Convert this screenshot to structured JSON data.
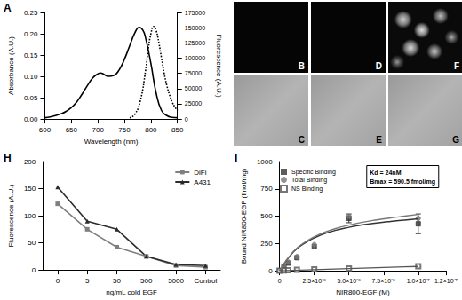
{
  "chart_data": [
    {
      "label": "A",
      "type": "line",
      "x_label": "Wavelength (nm)",
      "y_label": "Absorbance (A.U.)",
      "y2_label": "Fluorescence (A.U.)",
      "xlim": [
        600,
        850
      ],
      "xticks": [
        600,
        650,
        700,
        750,
        800,
        850
      ],
      "ylim": [
        0,
        0.25
      ],
      "yticks": [
        {
          "value": 0,
          "label": "0.00"
        },
        {
          "value": 0.05,
          "label": "0.05"
        },
        {
          "value": 0.1,
          "label": "0.10"
        },
        {
          "value": 0.15,
          "label": "0.15"
        },
        {
          "value": 0.2,
          "label": "0.20"
        },
        {
          "value": 0.25,
          "label": "0.25"
        }
      ],
      "y2lim": [
        0,
        175000
      ],
      "y2ticks": [
        0,
        25000,
        50000,
        75000,
        100000,
        125000,
        150000,
        175000
      ],
      "grid": false,
      "series": [
        {
          "color": "#000000",
          "line_style": "solid",
          "x": [
            600,
            610,
            620,
            630,
            640,
            650,
            660,
            670,
            680,
            690,
            700,
            705,
            710,
            720,
            730,
            740,
            750,
            760,
            770,
            778,
            785,
            790,
            800,
            810,
            820,
            830,
            840,
            850
          ],
          "values": [
            0.003,
            0.005,
            0.008,
            0.012,
            0.018,
            0.027,
            0.04,
            0.058,
            0.078,
            0.096,
            0.106,
            0.108,
            0.106,
            0.1,
            0.102,
            0.115,
            0.14,
            0.172,
            0.203,
            0.215,
            0.208,
            0.19,
            0.13,
            0.06,
            0.02,
            0.008,
            0.004,
            0.003
          ]
        },
        {
          "color": "#000000",
          "line_style": "dotted",
          "axis": "y2",
          "x": [
            760,
            770,
            780,
            790,
            795,
            800,
            805,
            810,
            815,
            820,
            825,
            830,
            835,
            840,
            845,
            850
          ],
          "values": [
            2000,
            8000,
            30000,
            80000,
            115000,
            140000,
            152000,
            145000,
            125000,
            100000,
            75000,
            55000,
            40000,
            28000,
            20000,
            14000
          ]
        }
      ]
    },
    {
      "label": "H",
      "type": "line",
      "x_label": "ng/mL cold EGF",
      "y_label": "Fluorescence (A.U.)",
      "categories": [
        "0",
        "5",
        "50",
        "500",
        "5000",
        "Control"
      ],
      "ylim": [
        0,
        200
      ],
      "yticks": [
        0,
        50,
        100,
        150,
        200
      ],
      "grid": false,
      "legend": "top-right",
      "series": [
        {
          "name": "DiFi",
          "color": "#7f7f7f",
          "marker": "square",
          "values": [
            122,
            75,
            42,
            25,
            8,
            5
          ]
        },
        {
          "name": "A431",
          "color": "#2b2b2b",
          "marker": "triangle",
          "values": [
            153,
            90,
            75,
            25,
            10,
            8
          ]
        }
      ]
    },
    {
      "label": "I",
      "type": "scatter",
      "x_label": "NIR800-EGF (M)",
      "y_label": "Bound NIR800-EGF (fmol/mg)",
      "xlim": [
        0,
        1.2e-07
      ],
      "xticks": [
        {
          "value": 0,
          "label": "0"
        },
        {
          "value": 2.5e-08,
          "label": "2.5×10⁻⁸"
        },
        {
          "value": 5e-08,
          "label": "5.0×10⁻⁸"
        },
        {
          "value": 7.5e-08,
          "label": "7.5×10⁻⁸"
        },
        {
          "value": 1e-07,
          "label": "1.0×10⁻⁷"
        },
        {
          "value": 1.2e-07,
          "label": "1.2×10⁻⁷"
        }
      ],
      "ylim": [
        0,
        1000
      ],
      "yticks": [
        0,
        250,
        500,
        750,
        1000
      ],
      "grid": false,
      "legend": "top-left",
      "annotations": [
        "Kd = 24nM",
        "Bmax = 590.5 fmol/mg"
      ],
      "series": [
        {
          "name": "Specific Binding",
          "color": "#333333",
          "marker": "square",
          "x": [
            0,
            3.125e-09,
            6.25e-09,
            1.25e-08,
            2.5e-08,
            5e-08,
            1e-07
          ],
          "values": [
            0,
            40,
            70,
            120,
            220,
            480,
            430
          ],
          "errors": [
            null,
            null,
            null,
            null,
            null,
            40,
            90
          ]
        },
        {
          "name": "Total Binding",
          "color": "#777777",
          "marker": "circle",
          "x": [
            0,
            3.125e-09,
            6.25e-09,
            1.25e-08,
            2.5e-08,
            5e-08,
            1e-07
          ],
          "values": [
            0,
            45,
            80,
            130,
            240,
            500,
            480
          ]
        },
        {
          "name": "NS Binding",
          "color": "#555555",
          "marker": "open_square",
          "x": [
            0,
            3.125e-09,
            6.25e-09,
            1.25e-08,
            2.5e-08,
            5e-08,
            1e-07
          ],
          "values": [
            0,
            3,
            5,
            8,
            12,
            22,
            42
          ]
        }
      ],
      "fit_lines": [
        {
          "color": "#333333",
          "x": [
            0,
            1e-08,
            2e-08,
            3e-08,
            4e-08,
            5e-08,
            6e-08,
            7e-08,
            8e-08,
            9e-08,
            1e-07
          ],
          "values": [
            0,
            173,
            268,
            328,
            369,
            398,
            421,
            438,
            452,
            464,
            476
          ]
        },
        {
          "color": "#777777",
          "x": [
            0,
            1e-08,
            2e-08,
            3e-08,
            4e-08,
            5e-08,
            6e-08,
            7e-08,
            8e-08,
            9e-08,
            1e-07
          ],
          "values": [
            0,
            177,
            276,
            340,
            385,
            418,
            445,
            466,
            484,
            500,
            516
          ]
        },
        {
          "color": "#555555",
          "x": [
            0,
            1e-08,
            2e-08,
            3e-08,
            4e-08,
            5e-08,
            6e-08,
            7e-08,
            8e-08,
            9e-08,
            1e-07
          ],
          "values": [
            0,
            4,
            8,
            12,
            16,
            20,
            24,
            28,
            32,
            36,
            40
          ]
        }
      ]
    }
  ],
  "images": [
    "B",
    "C",
    "D",
    "E",
    "F",
    "G"
  ]
}
